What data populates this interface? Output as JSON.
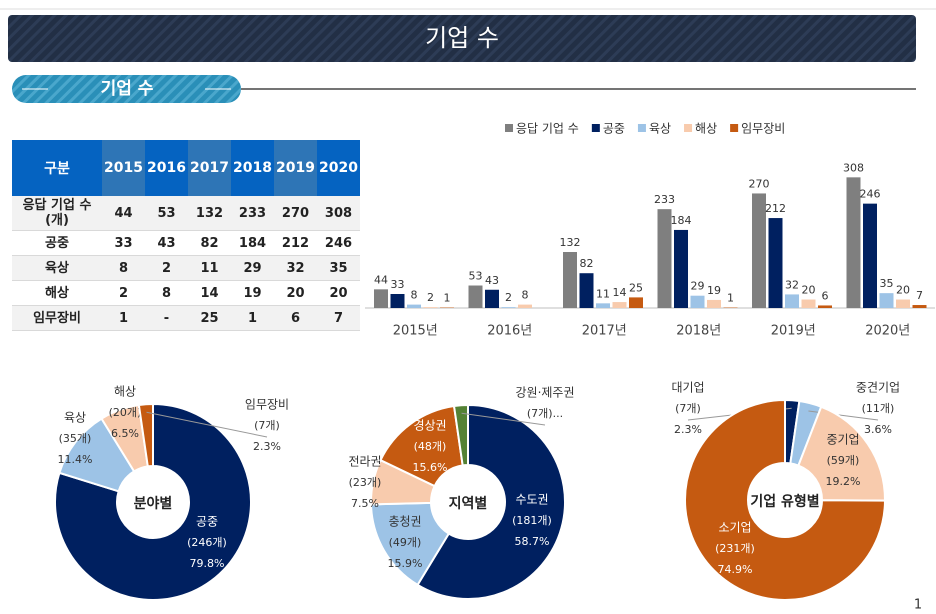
{
  "header": {
    "title": "기업 수"
  },
  "section": {
    "label": "기업 수"
  },
  "table": {
    "header": [
      "구분",
      "2015",
      "2016",
      "2017",
      "2018",
      "2019",
      "2020"
    ],
    "rows": [
      [
        "응답 기업 수 (개)",
        44,
        53,
        132,
        233,
        270,
        308
      ],
      [
        "공중",
        33,
        43,
        82,
        184,
        212,
        246
      ],
      [
        "육상",
        8,
        2,
        11,
        29,
        32,
        35
      ],
      [
        "해상",
        2,
        8,
        14,
        19,
        20,
        20
      ],
      [
        "임무장비",
        1,
        "-",
        25,
        1,
        6,
        7
      ]
    ]
  },
  "chart_data": [
    {
      "type": "bar",
      "categories": [
        "2015년",
        "2016년",
        "2017년",
        "2018년",
        "2019년",
        "2020년"
      ],
      "ylim": [
        0,
        330
      ],
      "legend": "top",
      "series": [
        {
          "name": "응답 기업 수",
          "color": "#7f7f7f",
          "values": [
            44,
            53,
            132,
            233,
            270,
            308
          ]
        },
        {
          "name": "공중",
          "color": "#002060",
          "values": [
            33,
            43,
            82,
            184,
            212,
            246
          ]
        },
        {
          "name": "육상",
          "color": "#9dc3e6",
          "values": [
            8,
            2,
            11,
            29,
            32,
            35
          ]
        },
        {
          "name": "해상",
          "color": "#f8cbad",
          "values": [
            2,
            8,
            14,
            19,
            20,
            20
          ]
        },
        {
          "name": "임무장비",
          "color": "#c55a11",
          "values": [
            1,
            null,
            25,
            1,
            6,
            7
          ]
        }
      ]
    },
    {
      "type": "donut",
      "center_label": "분야별",
      "categories": [
        "공중",
        "육상",
        "해상",
        "임무장비"
      ],
      "values": [
        79.8,
        11.4,
        6.5,
        2.3
      ],
      "value_labels": [
        "79.8%",
        "11.4%",
        "6.5%",
        "2.3%"
      ],
      "counts": [
        246,
        35,
        20,
        7
      ],
      "count_labels": [
        "(246개)",
        "(35개)",
        "(20개)",
        "(7개)"
      ],
      "colors": [
        "#002060",
        "#9dc3e6",
        "#f8cbad",
        "#c55a11"
      ]
    },
    {
      "type": "donut",
      "center_label": "지역별",
      "categories": [
        "수도권",
        "충청권",
        "전라권",
        "경상권",
        "강원·제주권"
      ],
      "values": [
        58.7,
        15.9,
        7.5,
        15.6,
        2.3
      ],
      "value_labels": [
        "58.7%",
        "15.9%",
        "7.5%",
        "15.6%",
        null
      ],
      "counts": [
        181,
        49,
        23,
        48,
        7
      ],
      "count_labels": [
        "(181개)",
        "(49개)",
        "(23개)",
        "(48개)",
        "(7개)..."
      ],
      "colors": [
        "#002060",
        "#9dc3e6",
        "#f8cbad",
        "#c55a11",
        "#548235"
      ]
    },
    {
      "type": "donut",
      "center_label": "기업 유형별",
      "categories": [
        "대기업",
        "중견기업",
        "중기업",
        "소기업"
      ],
      "values": [
        2.3,
        3.6,
        19.2,
        74.9
      ],
      "value_labels": [
        "2.3%",
        "3.6%",
        "19.2%",
        "74.9%"
      ],
      "counts": [
        7,
        11,
        59,
        231
      ],
      "count_labels": [
        "(7개)",
        "(11개)",
        "(59개)",
        "(231개)"
      ],
      "colors": [
        "#002060",
        "#9dc3e6",
        "#f8cbad",
        "#c55a11"
      ]
    }
  ],
  "page_number": "1"
}
